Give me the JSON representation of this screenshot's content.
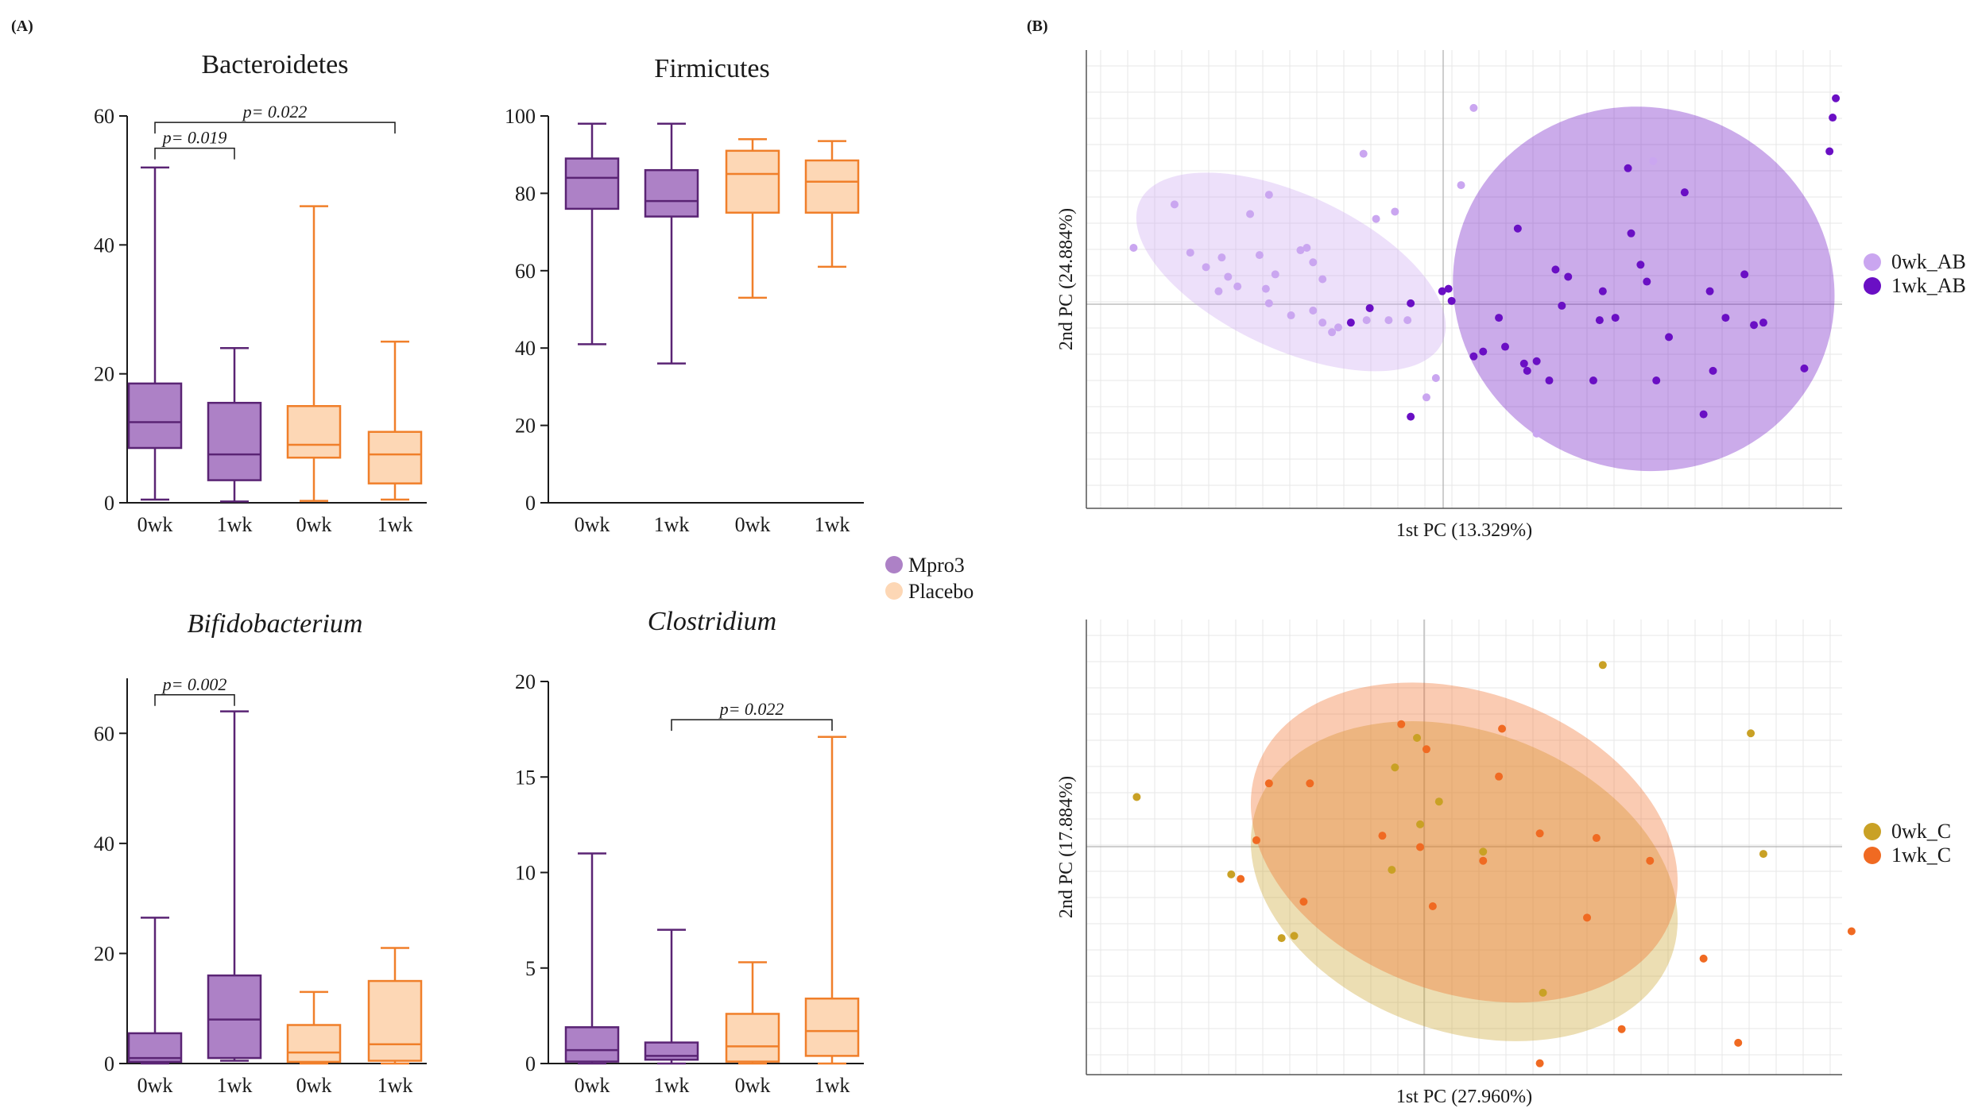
{
  "panels": {
    "a_label": "(A)",
    "b_label": "(B)"
  },
  "colors": {
    "mpro3_stroke": "#5a2474",
    "mpro3_fill": "#ad81c6",
    "placebo_stroke": "#f07f2a",
    "placebo_fill": "#fdd7b5",
    "pca_ab_0wk": "#caa6f0",
    "pca_ab_1wk": "#6a0fc4",
    "pca_c_0wk": "#c9a125",
    "pca_c_1wk": "#f06a22"
  },
  "legend_boxes": {
    "mpro3": "Mpro3",
    "placebo": "Placebo"
  },
  "chart_data": [
    {
      "type": "box",
      "title": "Bacteroidetes",
      "italic": false,
      "categories": [
        "0wk",
        "1wk",
        "0wk",
        "1wk"
      ],
      "groups": [
        "Mpro3",
        "Mpro3",
        "Placebo",
        "Placebo"
      ],
      "ylim": [
        0,
        60
      ],
      "yticks": [
        0,
        20,
        40,
        60
      ],
      "boxes": [
        {
          "min": 0.5,
          "q1": 8.5,
          "median": 12.5,
          "q3": 18.5,
          "max": 52
        },
        {
          "min": 0.2,
          "q1": 3.5,
          "median": 7.5,
          "q3": 15.5,
          "max": 24
        },
        {
          "min": 0.3,
          "q1": 7,
          "median": 9,
          "q3": 15,
          "max": 46
        },
        {
          "min": 0.5,
          "q1": 3,
          "median": 7.5,
          "q3": 11,
          "max": 25
        }
      ],
      "brackets": [
        {
          "from": 0,
          "to": 1,
          "label": "p= 0.019",
          "y": 55
        },
        {
          "from": 0,
          "to": 3,
          "label": "p= 0.022",
          "y": 59
        }
      ]
    },
    {
      "type": "box",
      "title": "Firmicutes",
      "italic": false,
      "categories": [
        "0wk",
        "1wk",
        "0wk",
        "1wk"
      ],
      "groups": [
        "Mpro3",
        "Mpro3",
        "Placebo",
        "Placebo"
      ],
      "ylim": [
        0,
        100
      ],
      "yticks": [
        0,
        20,
        40,
        60,
        80,
        100
      ],
      "boxes": [
        {
          "min": 41,
          "q1": 76,
          "median": 84,
          "q3": 89,
          "max": 98
        },
        {
          "min": 36,
          "q1": 74,
          "median": 78,
          "q3": 86,
          "max": 98
        },
        {
          "min": 53,
          "q1": 75,
          "median": 85,
          "q3": 91,
          "max": 94
        },
        {
          "min": 61,
          "q1": 75,
          "median": 83,
          "q3": 88.5,
          "max": 93.5
        }
      ],
      "brackets": []
    },
    {
      "type": "box",
      "title": "Bifidobacterium",
      "italic": true,
      "categories": [
        "0wk",
        "1wk",
        "0wk",
        "1wk"
      ],
      "groups": [
        "Mpro3",
        "Mpro3",
        "Placebo",
        "Placebo"
      ],
      "ylim": [
        0,
        70
      ],
      "yticks": [
        0,
        20,
        40,
        60
      ],
      "boxes": [
        {
          "min": 0,
          "q1": 0.3,
          "median": 1,
          "q3": 5.5,
          "max": 26.5
        },
        {
          "min": 0.5,
          "q1": 1,
          "median": 8,
          "q3": 16,
          "max": 64
        },
        {
          "min": 0,
          "q1": 0.3,
          "median": 2,
          "q3": 7,
          "max": 13
        },
        {
          "min": 0,
          "q1": 0.5,
          "median": 3.5,
          "q3": 15,
          "max": 21
        }
      ],
      "brackets": [
        {
          "from": 0,
          "to": 1,
          "label": "p= 0.002",
          "y": 67
        }
      ]
    },
    {
      "type": "box",
      "title": "Clostridium",
      "italic": true,
      "categories": [
        "0wk",
        "1wk",
        "0wk",
        "1wk"
      ],
      "groups": [
        "Mpro3",
        "Mpro3",
        "Placebo",
        "Placebo"
      ],
      "ylim": [
        0,
        20
      ],
      "yticks": [
        0,
        5,
        10,
        15,
        20
      ],
      "boxes": [
        {
          "min": 0,
          "q1": 0.1,
          "median": 0.7,
          "q3": 1.9,
          "max": 11
        },
        {
          "min": 0,
          "q1": 0.2,
          "median": 0.4,
          "q3": 1.1,
          "max": 7
        },
        {
          "min": 0,
          "q1": 0.1,
          "median": 0.9,
          "q3": 2.6,
          "max": 5.3
        },
        {
          "min": 0,
          "q1": 0.4,
          "median": 1.7,
          "q3": 3.4,
          "max": 17.1
        }
      ],
      "brackets": [
        {
          "from": 1,
          "to": 3,
          "label": "p= 0.022",
          "y": 18
        }
      ]
    },
    {
      "type": "scatter",
      "xlabel": "1st PC (13.329%)",
      "ylabel": "2nd PC (24.884%)",
      "xlim": [
        -1.2,
        1.2
      ],
      "ylim": [
        -0.9,
        1.0
      ],
      "legend_position": "right",
      "series": [
        {
          "name": "0wk_AB",
          "color_key": "pca_ab_0wk",
          "x": [
            -1.05,
            -0.92,
            -0.87,
            -0.82,
            -0.77,
            -0.75,
            -0.78,
            -0.72,
            -0.68,
            -0.62,
            -0.65,
            -0.6,
            -0.63,
            -0.62,
            -0.52,
            -0.5,
            -0.48,
            -0.55,
            -0.48,
            -0.45,
            -0.42,
            -0.45,
            -0.4,
            -0.32,
            -0.31,
            -0.28,
            -0.24,
            -0.22,
            -0.18,
            -0.12,
            -0.09,
            0.03,
            -0.01,
            0.23,
            0.6
          ],
          "y": [
            0.18,
            0.36,
            0.16,
            0.1,
            0.14,
            0.06,
            0.0,
            0.02,
            0.32,
            0.4,
            0.15,
            0.07,
            0.01,
            -0.05,
            0.17,
            0.18,
            0.12,
            -0.1,
            -0.08,
            -0.13,
            -0.17,
            0.05,
            -0.15,
            0.57,
            -0.12,
            0.3,
            -0.12,
            0.33,
            -0.12,
            -0.44,
            -0.36,
            0.76,
            0.44,
            -0.59,
            0.54
          ],
          "size": 5
        },
        {
          "name": "1wk_AB",
          "color_key": "pca_ab_1wk",
          "x": [
            -0.36,
            -0.3,
            -0.17,
            -0.07,
            -0.05,
            -0.04,
            -0.17,
            0.03,
            0.06,
            0.11,
            0.13,
            0.19,
            0.2,
            0.17,
            0.23,
            0.27,
            0.29,
            0.31,
            0.33,
            0.41,
            0.43,
            0.44,
            0.48,
            0.53,
            0.52,
            0.58,
            0.56,
            0.61,
            0.65,
            0.7,
            0.76,
            0.79,
            0.83,
            0.92,
            0.95,
            1.08,
            1.16,
            1.17,
            1.18,
            0.89,
            0.78
          ],
          "y": [
            -0.13,
            -0.07,
            -0.05,
            0.0,
            0.01,
            -0.04,
            -0.52,
            -0.27,
            -0.25,
            -0.11,
            -0.23,
            -0.3,
            -0.33,
            0.26,
            -0.29,
            -0.37,
            0.09,
            -0.06,
            0.06,
            -0.37,
            -0.12,
            0.0,
            -0.11,
            0.24,
            0.51,
            0.04,
            0.11,
            -0.37,
            -0.19,
            0.41,
            -0.51,
            -0.33,
            -0.11,
            -0.14,
            -0.13,
            -0.32,
            0.58,
            0.72,
            0.8,
            0.07,
            0.0
          ],
          "size": 5
        }
      ],
      "ellipses": [
        {
          "series": "0wk_AB",
          "cx": -0.55,
          "cy": 0.08,
          "rx": 0.53,
          "ry": 0.32,
          "angle": 25
        },
        {
          "series": "1wk_AB",
          "cx": 0.57,
          "cy": 0.01,
          "rx": 0.61,
          "ry": 0.75,
          "angle": 20
        }
      ]
    },
    {
      "type": "scatter",
      "xlabel": "1st PC (27.960%)",
      "ylabel": "2nd PC (17.884%)",
      "xlim": [
        -1.2,
        1.2
      ],
      "ylim": [
        -1.0,
        1.0
      ],
      "legend_position": "right",
      "series": [
        {
          "name": "0wk_C",
          "color_key": "pca_c_0wk",
          "x": [
            -1.04,
            -0.74,
            -0.58,
            -0.54,
            -0.22,
            -0.23,
            -0.15,
            -0.14,
            -0.08,
            0.06,
            0.25,
            0.44,
            0.91,
            0.95
          ],
          "y": [
            0.22,
            -0.12,
            -0.4,
            -0.39,
            0.35,
            -0.1,
            0.48,
            0.1,
            0.2,
            -0.02,
            -0.64,
            0.8,
            0.5,
            -0.03
          ],
          "size": 5
        },
        {
          "name": "1wk_C",
          "color_key": "pca_c_1wk",
          "x": [
            -0.71,
            -0.66,
            -0.62,
            -0.51,
            -0.49,
            -0.26,
            -0.12,
            -0.14,
            -0.1,
            -0.2,
            0.06,
            0.11,
            0.12,
            0.24,
            0.39,
            0.42,
            0.5,
            0.59,
            0.76,
            0.87,
            1.23,
            0.24
          ],
          "y": [
            -0.14,
            0.03,
            0.28,
            -0.24,
            0.28,
            0.05,
            0.43,
            0.0,
            -0.26,
            0.54,
            -0.06,
            0.31,
            0.52,
            0.06,
            -0.31,
            0.04,
            -0.8,
            -0.06,
            -0.49,
            -0.86,
            -0.37,
            -0.95
          ],
          "size": 5
        }
      ],
      "ellipses": [
        {
          "series": "0wk_C",
          "cx": 0.0,
          "cy": -0.15,
          "rx": 0.7,
          "ry": 0.66,
          "angle": 20
        },
        {
          "series": "1wk_C",
          "cx": 0.0,
          "cy": 0.02,
          "rx": 0.7,
          "ry": 0.66,
          "angle": 20
        }
      ]
    }
  ]
}
